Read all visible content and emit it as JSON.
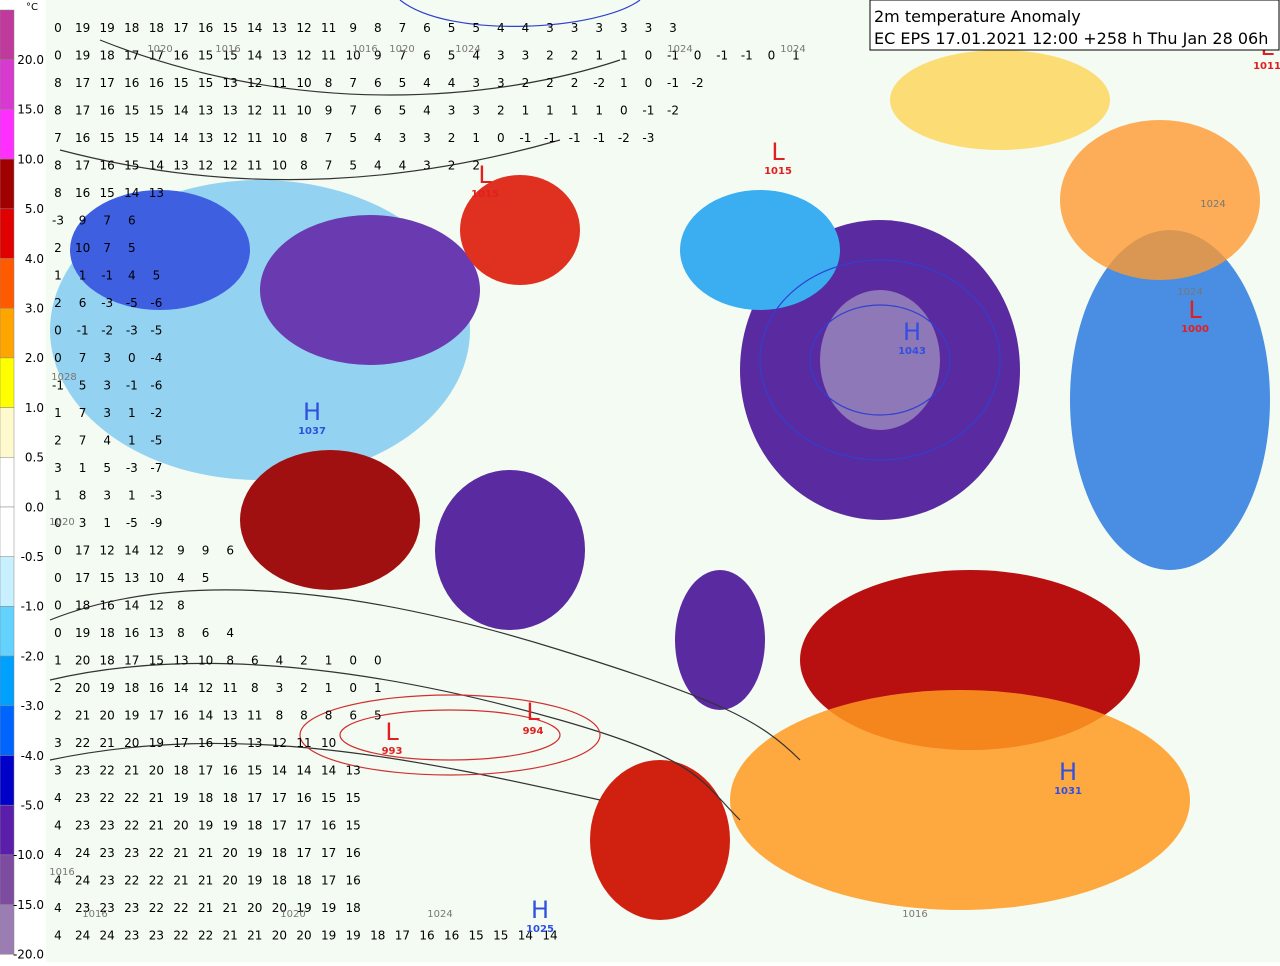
{
  "title": "2m temperature Anomaly",
  "subtitle": "EC EPS 17.01.2021 12:00 +258 h Thu Jan 28 06h",
  "colorbar": {
    "unit": "°C",
    "labels": [
      "20.0",
      "15.0",
      "10.0",
      "5.0",
      "4.0",
      "3.0",
      "2.0",
      "1.0",
      "0.5",
      "0.0",
      "-0.5",
      "-1.0",
      "-2.0",
      "-3.0",
      "-4.0",
      "-5.0",
      "-10.0",
      "-15.0",
      "-20.0"
    ]
  },
  "pressure_centers": [
    {
      "letter": "L",
      "value": "1015"
    },
    {
      "letter": "L",
      "value": "1015"
    },
    {
      "letter": "H",
      "value": "1043"
    },
    {
      "letter": "H",
      "value": "1037"
    },
    {
      "letter": "L",
      "value": "993"
    },
    {
      "letter": "L",
      "value": "994"
    },
    {
      "letter": "H",
      "value": "1025"
    },
    {
      "letter": "L",
      "value": "1000"
    },
    {
      "letter": "H",
      "value": "1031"
    },
    {
      "letter": "L",
      "value": "1011"
    }
  ],
  "isobar_labels": [
    "1020",
    "1016",
    "1016",
    "1020",
    "1024",
    "1024",
    "1024",
    "1028",
    "1024",
    "1020",
    "1016",
    "1016",
    "1020",
    "1024",
    "1016",
    "1024"
  ],
  "temperature_rows": [
    [
      0,
      19,
      19,
      18,
      18,
      17,
      16,
      15,
      14,
      13,
      12,
      11,
      9,
      8,
      7,
      6,
      5,
      5,
      4,
      4,
      3,
      3,
      3,
      3,
      3,
      3
    ],
    [
      0,
      19,
      18,
      17,
      17,
      16,
      15,
      15,
      14,
      13,
      12,
      11,
      10,
      9,
      7,
      6,
      5,
      4,
      3,
      3,
      2,
      2,
      1,
      1,
      0,
      -1,
      0,
      -1,
      -1,
      0,
      1
    ],
    [
      8,
      17,
      17,
      16,
      16,
      15,
      15,
      13,
      12,
      11,
      10,
      8,
      7,
      6,
      5,
      4,
      4,
      3,
      3,
      2,
      2,
      2,
      -2,
      1,
      0,
      -1,
      -2
    ],
    [
      8,
      17,
      16,
      15,
      15,
      14,
      13,
      13,
      12,
      11,
      10,
      9,
      7,
      6,
      5,
      4,
      3,
      3,
      2,
      1,
      1,
      1,
      1,
      0,
      -1,
      -2
    ],
    [
      7,
      16,
      15,
      15,
      14,
      14,
      13,
      12,
      11,
      10,
      8,
      7,
      5,
      4,
      3,
      3,
      2,
      1,
      0,
      -1,
      -1,
      -1,
      -1,
      -2,
      -3
    ],
    [
      8,
      17,
      16,
      15,
      14,
      13,
      12,
      12,
      11,
      10,
      8,
      7,
      5,
      4,
      4,
      3,
      2,
      2
    ],
    [
      8,
      16,
      15,
      14,
      13
    ],
    [
      -3,
      9,
      7,
      6
    ],
    [
      2,
      10,
      7,
      5
    ],
    [
      1,
      1,
      -1,
      4,
      5
    ],
    [
      2,
      6,
      -3,
      -5,
      -6
    ],
    [
      0,
      -1,
      -2,
      -3,
      -5
    ],
    [
      0,
      7,
      3,
      0,
      -4
    ],
    [
      -1,
      5,
      3,
      -1,
      -6
    ],
    [
      1,
      7,
      3,
      1,
      -2
    ],
    [
      2,
      7,
      4,
      1,
      -5
    ],
    [
      3,
      1,
      5,
      -3,
      -7
    ],
    [
      1,
      8,
      3,
      1,
      -3
    ],
    [
      0,
      3,
      1,
      -5,
      -9
    ],
    [
      0,
      17,
      12,
      14,
      12,
      9,
      9,
      6
    ],
    [
      0,
      17,
      15,
      13,
      10,
      4,
      5
    ],
    [
      0,
      18,
      16,
      14,
      12,
      8
    ],
    [
      0,
      19,
      18,
      16,
      13,
      8,
      6,
      4
    ],
    [
      1,
      20,
      18,
      17,
      15,
      13,
      10,
      8,
      6,
      4,
      2,
      1,
      0,
      0
    ],
    [
      2,
      20,
      19,
      18,
      16,
      14,
      12,
      11,
      8,
      3,
      2,
      1,
      0,
      1
    ],
    [
      2,
      21,
      20,
      19,
      17,
      16,
      14,
      13,
      11,
      8,
      8,
      8,
      6,
      5
    ],
    [
      3,
      22,
      21,
      20,
      19,
      17,
      16,
      15,
      13,
      12,
      11,
      10
    ],
    [
      3,
      23,
      22,
      21,
      20,
      18,
      17,
      16,
      15,
      14,
      14,
      14,
      13
    ],
    [
      4,
      23,
      22,
      22,
      21,
      19,
      18,
      18,
      17,
      17,
      16,
      15,
      15
    ],
    [
      4,
      23,
      23,
      22,
      21,
      20,
      19,
      19,
      18,
      17,
      17,
      16,
      15
    ],
    [
      4,
      24,
      23,
      23,
      22,
      21,
      21,
      20,
      19,
      18,
      17,
      17,
      16
    ],
    [
      4,
      24,
      23,
      22,
      22,
      21,
      21,
      20,
      19,
      18,
      18,
      17,
      16
    ],
    [
      4,
      23,
      23,
      23,
      22,
      22,
      21,
      21,
      20,
      20,
      19,
      19,
      18
    ],
    [
      4,
      24,
      24,
      23,
      23,
      22,
      22,
      21,
      21,
      20,
      20,
      19,
      19,
      18,
      17,
      16,
      16,
      15,
      15,
      14,
      14
    ]
  ]
}
